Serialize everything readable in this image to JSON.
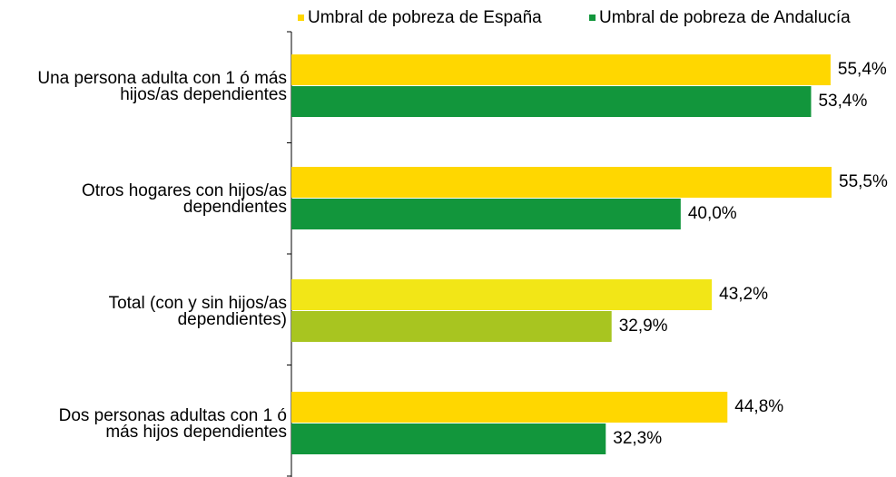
{
  "chart_data": {
    "type": "hbar",
    "categories": [
      [
        "Una persona adulta con 1 ó más",
        "hijos/as dependientes"
      ],
      [
        "Otros hogares con hijos/as",
        "dependientes"
      ],
      [
        "Total (con y sin hijos/as",
        "dependientes)"
      ],
      [
        "Dos personas adultas con 1 ó",
        "más hijos dependientes"
      ]
    ],
    "series": [
      {
        "name": "Umbral de pobreza de España",
        "color": "#ffd700",
        "colors": [
          "#ffd700",
          "#ffd700",
          "#f2e617",
          "#ffd700"
        ],
        "values": [
          55.4,
          55.5,
          43.2,
          44.8
        ],
        "value_labels": [
          "55,4%",
          "55,5%",
          "43,2%",
          "44,8%"
        ]
      },
      {
        "name": "Umbral de pobreza de Andalucía",
        "color": "#12963c",
        "colors": [
          "#12963c",
          "#12963c",
          "#a8c520",
          "#12963c"
        ],
        "values": [
          53.4,
          40.0,
          32.9,
          32.3
        ],
        "value_labels": [
          "53,4%",
          "40,0%",
          "32,9%",
          "32,3%"
        ]
      }
    ],
    "legend": "top"
  }
}
